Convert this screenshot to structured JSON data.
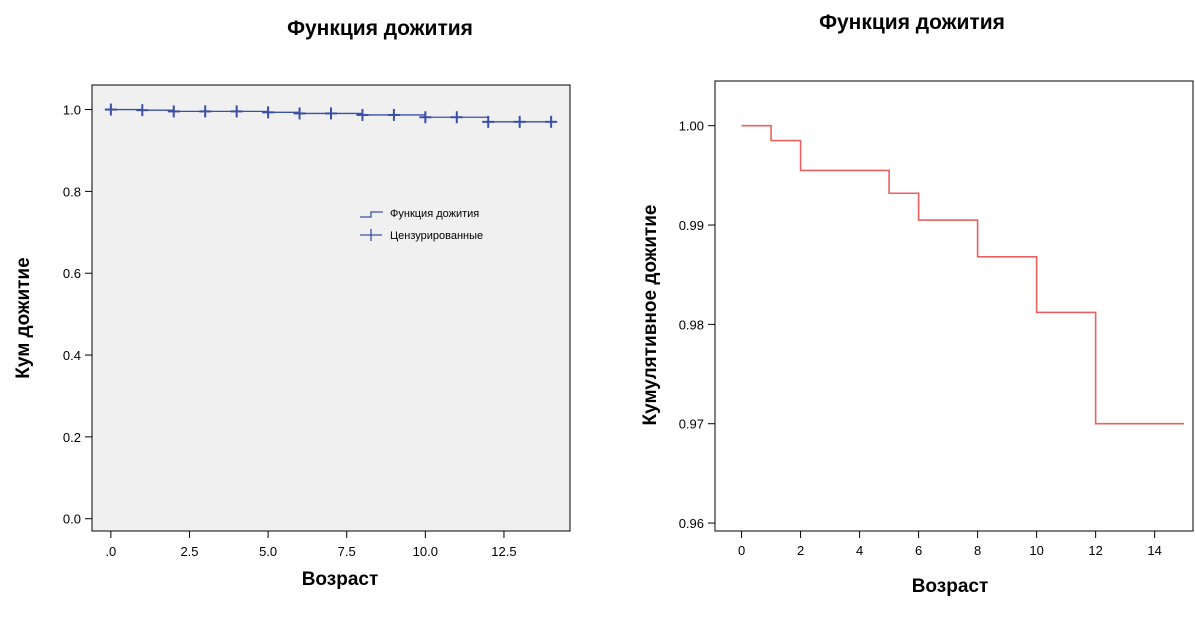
{
  "colors": {
    "blue": "#3a4fa6",
    "red": "#e8605f",
    "plot_bg_left": "#f0f0f0",
    "plot_bg_right": "#ffffff"
  },
  "chart_data": [
    {
      "type": "line",
      "step": true,
      "title": "Функция дожития",
      "xlabel": "Возраст",
      "ylabel": "Кум дожитие",
      "xlim": [
        -0.6,
        14.6
      ],
      "ylim": [
        -0.03,
        1.06
      ],
      "x_ticks": [
        0,
        2.5,
        5,
        7.5,
        10,
        12.5
      ],
      "x_tick_labels": [
        ".0",
        "2.5",
        "5.0",
        "7.5",
        "10.0",
        "12.5"
      ],
      "y_ticks": [
        0,
        0.2,
        0.4,
        0.6,
        0.8,
        1.0
      ],
      "y_tick_labels": [
        "0.0",
        "0.2",
        "0.4",
        "0.6",
        "0.8",
        "1.0"
      ],
      "grid": false,
      "legend_position": "right",
      "legend": [
        "Функция дожития",
        "Цензурированные"
      ],
      "series": [
        {
          "name": "Функция дожития",
          "x": [
            0,
            1,
            2,
            5,
            6,
            8,
            10,
            12,
            14
          ],
          "y": [
            1.0,
            0.9985,
            0.9955,
            0.9932,
            0.9905,
            0.9868,
            0.9812,
            0.97,
            0.97
          ]
        },
        {
          "name": "Цензурированные",
          "x": [
            0,
            1,
            2,
            3,
            4,
            5,
            6,
            7,
            8,
            9,
            10,
            11,
            12,
            13,
            14
          ],
          "y": [
            1.0,
            0.9985,
            0.9955,
            0.9955,
            0.9955,
            0.9932,
            0.9905,
            0.9905,
            0.9868,
            0.9868,
            0.9812,
            0.9812,
            0.97,
            0.97,
            0.97
          ]
        }
      ]
    },
    {
      "type": "line",
      "step": true,
      "title": "Функция дожития",
      "xlabel": "Возраст",
      "ylabel": "Кумулятивное дожитие",
      "xlim": [
        -0.9,
        15.3
      ],
      "ylim": [
        0.9592,
        1.0045
      ],
      "x_ticks": [
        0,
        2,
        4,
        6,
        8,
        10,
        12,
        14
      ],
      "x_tick_labels": [
        "0",
        "2",
        "4",
        "6",
        "8",
        "10",
        "12",
        "14"
      ],
      "y_ticks": [
        0.96,
        0.97,
        0.98,
        0.99,
        1.0
      ],
      "y_tick_labels": [
        "0.96",
        "0.97",
        "0.98",
        "0.99",
        "1.00"
      ],
      "grid": false,
      "series": [
        {
          "x": [
            0,
            1,
            2,
            5,
            6,
            8,
            10,
            12,
            15
          ],
          "y": [
            1.0,
            0.9985,
            0.9955,
            0.9932,
            0.9905,
            0.9868,
            0.9812,
            0.97,
            0.97
          ]
        }
      ]
    }
  ]
}
